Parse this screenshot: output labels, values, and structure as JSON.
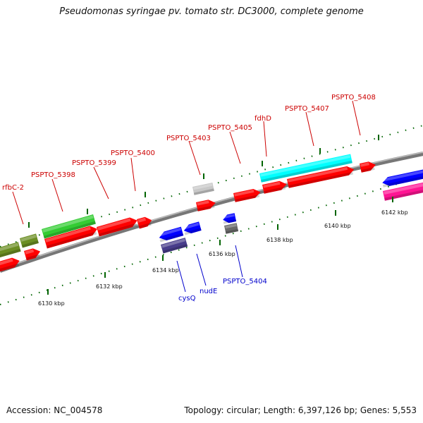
{
  "title": "Pseudomonas syringae pv. tomato str. DC3000, complete genome",
  "footer": {
    "accession": "Accession: NC_004578",
    "info": "Topology: circular; Length: 6,397,126 bp; Genes: 5,553"
  },
  "scale_labels": [
    "6130 kbp",
    "6132 kbp",
    "6134 kbp",
    "6136 kbp",
    "6138 kbp",
    "6140 kbp",
    "6142 kbp"
  ],
  "top_genes": [
    "rfbC-2",
    "PSPTO_5398",
    "PSPTO_5399",
    "PSPTO_5400",
    "PSPTO_5403",
    "PSPTO_5405",
    "fdhD",
    "PSPTO_5407",
    "PSPTO_5408"
  ],
  "bottom_genes": [
    "cysQ",
    "nudE",
    "PSPTO_5404"
  ],
  "colors": {
    "backbone": "#808080",
    "red": "#ff0000",
    "green": "#33cc33",
    "olive": "#6b8e23",
    "blue": "#0000ff",
    "navy": "#483d8b",
    "cyan": "#00ffff",
    "magenta": "#ff1493",
    "gray_light": "#c8c8c8",
    "gray_dark": "#696969",
    "ticks": "#006400",
    "top_label": "#cc0000",
    "bottom_label": "#0000cc"
  }
}
